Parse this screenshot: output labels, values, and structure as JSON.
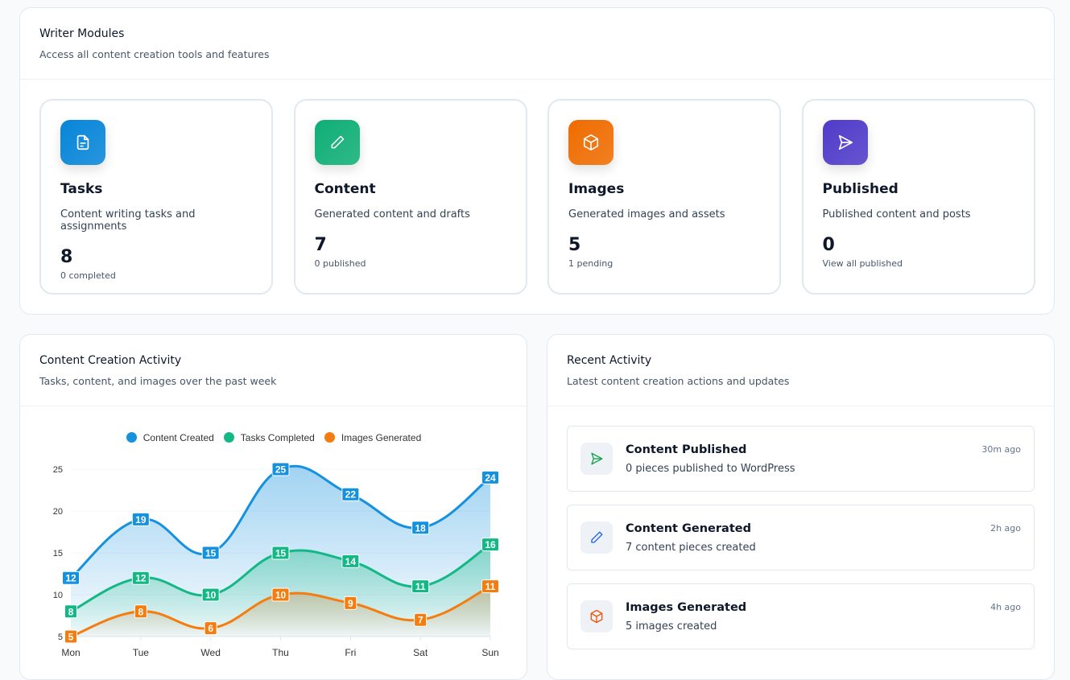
{
  "modules": {
    "title": "Writer Modules",
    "subtitle": "Access all content creation tools and features",
    "items": [
      {
        "title": "Tasks",
        "desc": "Content writing tasks and assignments",
        "count": "8",
        "foot": "0 completed",
        "icon": "file-text-icon",
        "color": "#0785d8"
      },
      {
        "title": "Content",
        "desc": "Generated content and drafts",
        "count": "7",
        "foot": "0 published",
        "icon": "pencil-icon",
        "color": "#0fae77"
      },
      {
        "title": "Images",
        "desc": "Generated images and assets",
        "count": "5",
        "foot": "1 pending",
        "icon": "box-icon",
        "color": "#ef6c00"
      },
      {
        "title": "Published",
        "desc": "Published content and posts",
        "count": "0",
        "foot": "View all published",
        "icon": "send-icon",
        "color": "#4f3bc9"
      }
    ]
  },
  "activity_chart": {
    "title": "Content Creation Activity",
    "subtitle": "Tasks, content, and images over the past week"
  },
  "recent": {
    "title": "Recent Activity",
    "subtitle": "Latest content creation actions and updates",
    "items": [
      {
        "title": "Content Published",
        "desc": "0 pieces published to WordPress",
        "time": "30m ago",
        "icon": "send-icon",
        "color": "#16a34a"
      },
      {
        "title": "Content Generated",
        "desc": "7 content pieces created",
        "time": "2h ago",
        "icon": "pencil-icon",
        "color": "#2563eb"
      },
      {
        "title": "Images Generated",
        "desc": "5 images created",
        "time": "4h ago",
        "icon": "box-icon",
        "color": "#ea580c"
      }
    ]
  },
  "chart_data": {
    "type": "area",
    "categories": [
      "Mon",
      "Tue",
      "Wed",
      "Thu",
      "Fri",
      "Sat",
      "Sun"
    ],
    "series": [
      {
        "name": "Content Created",
        "values": [
          12,
          19,
          15,
          25,
          22,
          18,
          24
        ],
        "color": "#1591de"
      },
      {
        "name": "Tasks Completed",
        "values": [
          8,
          12,
          10,
          15,
          14,
          11,
          16
        ],
        "color": "#14b885"
      },
      {
        "name": "Images Generated",
        "values": [
          5,
          8,
          6,
          10,
          9,
          7,
          11
        ],
        "color": "#f57c0e"
      }
    ],
    "yticks": [
      5,
      10,
      15,
      20,
      25
    ],
    "ylim": [
      5,
      25
    ],
    "legend": "top",
    "grid": true,
    "data_labels": true
  }
}
